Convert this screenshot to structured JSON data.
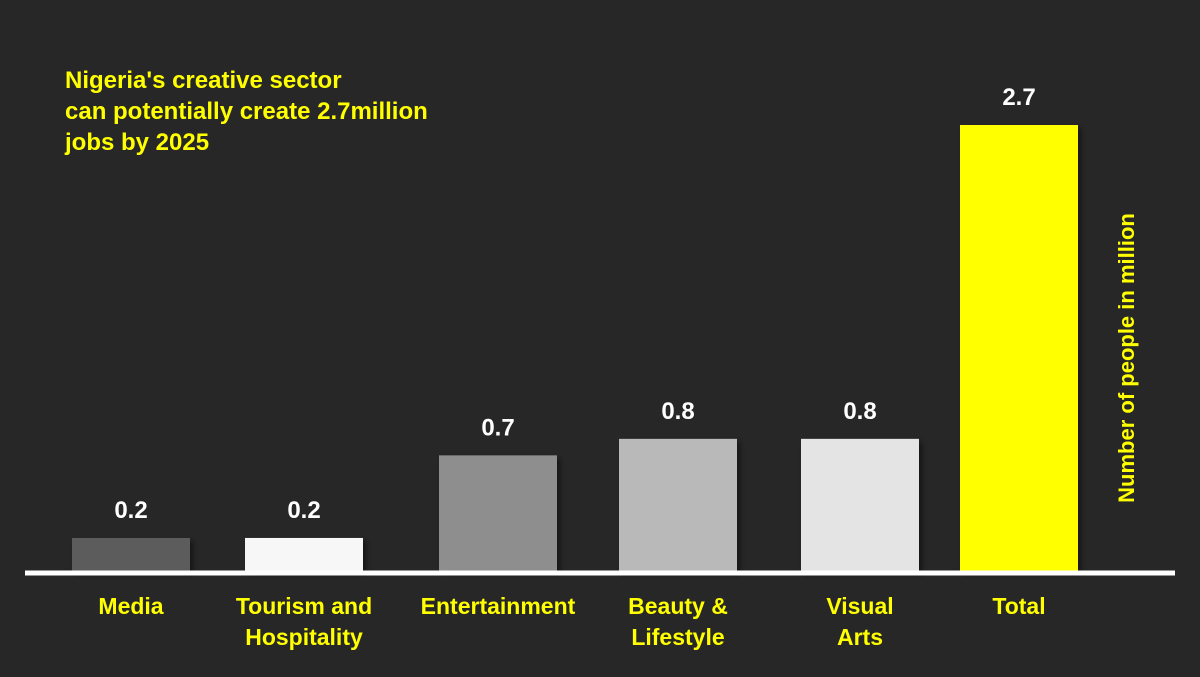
{
  "chart_data": {
    "type": "bar",
    "title_lines": [
      "Nigeria's creative sector",
      "can potentially create 2.7million",
      "jobs by 2025"
    ],
    "categories": [
      [
        "Media"
      ],
      [
        "Tourism and",
        "Hospitality"
      ],
      [
        "Entertainment"
      ],
      [
        "Beauty &",
        "Lifestyle"
      ],
      [
        "Visual",
        "Arts"
      ],
      [
        "Total"
      ]
    ],
    "values": [
      0.2,
      0.2,
      0.7,
      0.8,
      0.8,
      2.7
    ],
    "value_labels": [
      "0.2",
      "0.2",
      "0.7",
      "0.8",
      "0.8",
      "2.7"
    ],
    "bar_colors": [
      "#5b5b5b",
      "#f7f7f7",
      "#8e8e8e",
      "#b9b9b9",
      "#e4e4e4",
      "#ffff00"
    ],
    "ylabel": "Number of people in million",
    "ylim": [
      0,
      2.7
    ],
    "grid": false,
    "colors": {
      "background": "#272727",
      "accent": "#ffff00",
      "baseline": "#ffffff",
      "value_text": "#ffffff"
    }
  }
}
